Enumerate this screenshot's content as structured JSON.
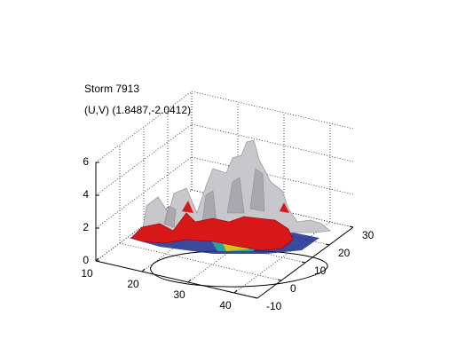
{
  "chart_data": {
    "type": "surface3d",
    "title": "Storm 7913",
    "subtitle": "(U,V) (1.8487,-2.0412)",
    "xlim": [
      10,
      45
    ],
    "xticks": [
      10,
      20,
      30,
      40
    ],
    "ylim": [
      -10,
      30
    ],
    "yticks": [
      -10,
      0,
      10,
      20,
      30
    ],
    "zlim": [
      0,
      6
    ],
    "zticks": [
      0,
      2,
      4,
      6
    ],
    "grid": true
  }
}
